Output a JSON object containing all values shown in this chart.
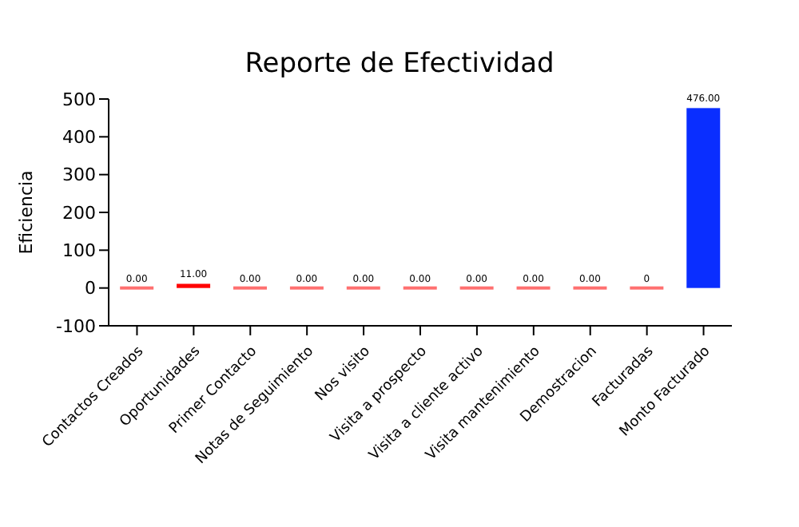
{
  "chart_data": {
    "type": "bar",
    "title": "Reporte de Efectividad",
    "ylabel": "Eficiencia",
    "categories": [
      "Contactos Creados",
      "Oportunidades",
      "Primer Contacto",
      "Notas de Seguimiento",
      "Nos visito",
      "Visita a prospecto",
      "Visita a cliente activo",
      "Visita mantenimiento",
      "Demostracion",
      "Facturadas",
      "Monto Facturado"
    ],
    "values": [
      0,
      11,
      0,
      0,
      0,
      0,
      0,
      0,
      0,
      0,
      476
    ],
    "colors": [
      "#ff7070",
      "#ff0000",
      "#ff7070",
      "#ff7070",
      "#ff7070",
      "#ff7070",
      "#ff7070",
      "#ff7070",
      "#ff7070",
      "#ff7070",
      "#0a2eff"
    ],
    "value_labels": [
      "0.00",
      "11.00",
      "0.00",
      "0.00",
      "0.00",
      "0.00",
      "0.00",
      "0.00",
      "0.00",
      "0",
      "476.00"
    ],
    "ylim": [
      -100,
      500
    ],
    "yticks": [
      -100,
      0,
      100,
      200,
      300,
      400,
      500
    ],
    "grid": false
  }
}
